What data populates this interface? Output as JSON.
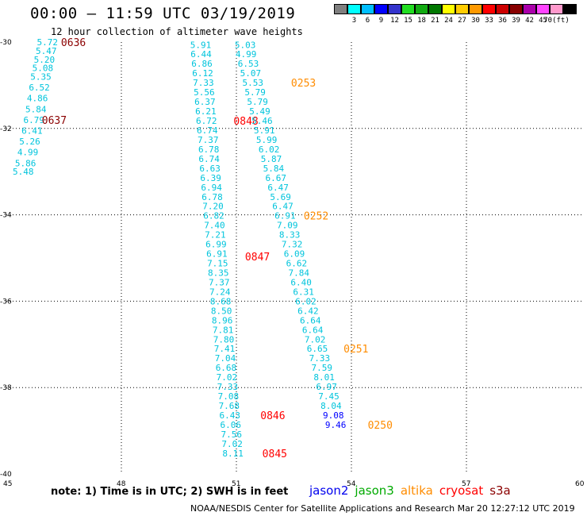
{
  "header": {
    "title": "00:00 – 11:59 UTC 03/19/2019",
    "subtitle": "12 hour collection of altimeter wave heights"
  },
  "scale": {
    "unit_label": "(ft)",
    "swatches": [
      {
        "color": "#7f7f7f",
        "label": ""
      },
      {
        "color": "#00ffff",
        "label": "3"
      },
      {
        "color": "#00bfff",
        "label": "6"
      },
      {
        "color": "#0000ff",
        "label": "9"
      },
      {
        "color": "#3333cc",
        "label": "12"
      },
      {
        "color": "#22dd22",
        "label": "15"
      },
      {
        "color": "#11aa11",
        "label": "18"
      },
      {
        "color": "#007700",
        "label": "21"
      },
      {
        "color": "#ffff00",
        "label": "24"
      },
      {
        "color": "#ffcc00",
        "label": "27"
      },
      {
        "color": "#ff9900",
        "label": "30"
      },
      {
        "color": "#ff0000",
        "label": "33"
      },
      {
        "color": "#cc0000",
        "label": "36"
      },
      {
        "color": "#880000",
        "label": "39"
      },
      {
        "color": "#aa00aa",
        "label": "42"
      },
      {
        "color": "#ff44ff",
        "label": "45"
      },
      {
        "color": "#ff99cc",
        "label": "70"
      },
      {
        "color": "#000000",
        "label": ""
      }
    ]
  },
  "axes": {
    "lon_ticks": [
      "45",
      "48",
      "51",
      "54",
      "57",
      "60"
    ],
    "lat_ticks": [
      "-30",
      "-32",
      "-34",
      "-36",
      "-38",
      "-40"
    ]
  },
  "tracks": [
    {
      "color": "#00c4dc",
      "label_color": "#8b0000",
      "points": [
        {
          "lon": 46.07,
          "lat": -30.0,
          "v": "5.72"
        },
        {
          "lon": 46.04,
          "lat": -30.2,
          "v": "5.47"
        },
        {
          "lon": 45.99,
          "lat": -30.4,
          "v": "5.20"
        },
        {
          "lon": 45.95,
          "lat": -30.6,
          "v": "5.08"
        },
        {
          "lon": 45.9,
          "lat": -30.8,
          "v": "5.35"
        },
        {
          "lon": 45.86,
          "lat": -31.05,
          "v": "6.52"
        },
        {
          "lon": 45.81,
          "lat": -31.3,
          "v": "4.86"
        },
        {
          "lon": 45.77,
          "lat": -31.55,
          "v": "5.84"
        },
        {
          "lon": 45.72,
          "lat": -31.8,
          "v": "6.79"
        },
        {
          "lon": 45.67,
          "lat": -32.05,
          "v": "6.41"
        },
        {
          "lon": 45.61,
          "lat": -32.3,
          "v": "5.26"
        },
        {
          "lon": 45.56,
          "lat": -32.55,
          "v": "4.99"
        },
        {
          "lon": 45.5,
          "lat": -32.8,
          "v": "5.86"
        },
        {
          "lon": 45.44,
          "lat": -33.0,
          "v": "5.48"
        }
      ],
      "labels": [
        {
          "lon": 46.75,
          "lat": -30.0,
          "t": "0636"
        },
        {
          "lon": 46.25,
          "lat": -31.8,
          "t": "0637"
        }
      ]
    },
    {
      "color": "#00c4dc",
      "label_color": "#ff0000",
      "points": [
        {
          "lon": 50.07,
          "lat": -30.06,
          "v": "5.91"
        },
        {
          "lon": 50.08,
          "lat": -30.28,
          "v": "6.44"
        },
        {
          "lon": 50.1,
          "lat": -30.5,
          "v": "6.86"
        },
        {
          "lon": 50.12,
          "lat": -30.72,
          "v": "6.12"
        },
        {
          "lon": 50.14,
          "lat": -30.94,
          "v": "7.33"
        },
        {
          "lon": 50.16,
          "lat": -31.16,
          "v": "5.56"
        },
        {
          "lon": 50.18,
          "lat": -31.38,
          "v": "6.37"
        },
        {
          "lon": 50.2,
          "lat": -31.6,
          "v": "6.21"
        },
        {
          "lon": 50.22,
          "lat": -31.82,
          "v": "6.72"
        },
        {
          "lon": 50.24,
          "lat": -32.04,
          "v": "6.74"
        },
        {
          "lon": 50.26,
          "lat": -32.26,
          "v": "7.37"
        },
        {
          "lon": 50.28,
          "lat": -32.48,
          "v": "6.78"
        },
        {
          "lon": 50.29,
          "lat": -32.7,
          "v": "6.74"
        },
        {
          "lon": 50.31,
          "lat": -32.92,
          "v": "6.63"
        },
        {
          "lon": 50.33,
          "lat": -33.14,
          "v": "6.39"
        },
        {
          "lon": 50.35,
          "lat": -33.36,
          "v": "6.94"
        },
        {
          "lon": 50.37,
          "lat": -33.58,
          "v": "6.78"
        },
        {
          "lon": 50.39,
          "lat": -33.8,
          "v": "7.20"
        },
        {
          "lon": 50.41,
          "lat": -34.02,
          "v": "6.82"
        },
        {
          "lon": 50.43,
          "lat": -34.24,
          "v": "7.40"
        },
        {
          "lon": 50.45,
          "lat": -34.46,
          "v": "7.21"
        },
        {
          "lon": 50.47,
          "lat": -34.68,
          "v": "6.99"
        },
        {
          "lon": 50.49,
          "lat": -34.9,
          "v": "6.91"
        },
        {
          "lon": 50.51,
          "lat": -35.12,
          "v": "7.15"
        },
        {
          "lon": 50.53,
          "lat": -35.34,
          "v": "8.35"
        },
        {
          "lon": 50.55,
          "lat": -35.56,
          "v": "7.37"
        },
        {
          "lon": 50.57,
          "lat": -35.78,
          "v": "7.24"
        },
        {
          "lon": 50.59,
          "lat": -36.0,
          "v": "8.68"
        },
        {
          "lon": 50.61,
          "lat": -36.22,
          "v": "8.50"
        },
        {
          "lon": 50.63,
          "lat": -36.44,
          "v": "8.96"
        },
        {
          "lon": 50.65,
          "lat": -36.66,
          "v": "7.81"
        },
        {
          "lon": 50.67,
          "lat": -36.88,
          "v": "7.80"
        },
        {
          "lon": 50.69,
          "lat": -37.1,
          "v": "7.41"
        },
        {
          "lon": 50.71,
          "lat": -37.32,
          "v": "7.04"
        },
        {
          "lon": 50.73,
          "lat": -37.54,
          "v": "6.68"
        },
        {
          "lon": 50.75,
          "lat": -37.76,
          "v": "7.02"
        },
        {
          "lon": 50.77,
          "lat": -37.98,
          "v": "7.33"
        },
        {
          "lon": 50.79,
          "lat": -38.2,
          "v": "7.08"
        },
        {
          "lon": 50.81,
          "lat": -38.42,
          "v": "7.68"
        },
        {
          "lon": 50.83,
          "lat": -38.64,
          "v": "6.43"
        },
        {
          "lon": 50.85,
          "lat": -38.86,
          "v": "6.06"
        },
        {
          "lon": 50.87,
          "lat": -39.08,
          "v": "7.56"
        },
        {
          "lon": 50.89,
          "lat": -39.3,
          "v": "7.02"
        },
        {
          "lon": 50.91,
          "lat": -39.52,
          "v": "8.11"
        }
      ],
      "labels": [
        {
          "lon": 51.25,
          "lat": -31.82,
          "t": "0848"
        },
        {
          "lon": 51.55,
          "lat": -34.96,
          "v2": "",
          "t": "0847"
        },
        {
          "lon": 51.95,
          "lat": -38.64,
          "t": "0846"
        },
        {
          "lon": 52.0,
          "lat": -39.52,
          "t": "0845"
        }
      ]
    },
    {
      "color": "#00c4dc",
      "label_color": "#ff8c00",
      "points": [
        {
          "lon": 51.23,
          "lat": -30.06,
          "v": "5.03"
        },
        {
          "lon": 51.25,
          "lat": -30.28,
          "v": "4.99"
        },
        {
          "lon": 51.31,
          "lat": -30.5,
          "v": "6.53"
        },
        {
          "lon": 51.37,
          "lat": -30.72,
          "v": "5.07"
        },
        {
          "lon": 51.43,
          "lat": -30.94,
          "v": "5.53"
        },
        {
          "lon": 51.49,
          "lat": -31.16,
          "v": "5.79"
        },
        {
          "lon": 51.55,
          "lat": -31.38,
          "v": "5.79"
        },
        {
          "lon": 51.61,
          "lat": -31.6,
          "v": "5.49"
        },
        {
          "lon": 51.67,
          "lat": -31.82,
          "v": "5.46"
        },
        {
          "lon": 51.73,
          "lat": -32.04,
          "v": "5.91"
        },
        {
          "lon": 51.79,
          "lat": -32.26,
          "v": "5.99"
        },
        {
          "lon": 51.85,
          "lat": -32.48,
          "v": "6.02"
        },
        {
          "lon": 51.91,
          "lat": -32.7,
          "v": "5.87"
        },
        {
          "lon": 51.97,
          "lat": -32.92,
          "v": "5.84"
        },
        {
          "lon": 52.03,
          "lat": -33.14,
          "v": "6.67"
        },
        {
          "lon": 52.09,
          "lat": -33.36,
          "v": "6.47"
        },
        {
          "lon": 52.15,
          "lat": -33.58,
          "v": "5.69"
        },
        {
          "lon": 52.21,
          "lat": -33.8,
          "v": "6.47"
        },
        {
          "lon": 52.27,
          "lat": -34.02,
          "v": "6.91"
        },
        {
          "lon": 52.33,
          "lat": -34.24,
          "v": "7.09"
        },
        {
          "lon": 52.39,
          "lat": -34.46,
          "v": "8.33"
        },
        {
          "lon": 52.45,
          "lat": -34.68,
          "v": "7.32"
        },
        {
          "lon": 52.51,
          "lat": -34.9,
          "v": "6.09"
        },
        {
          "lon": 52.57,
          "lat": -35.12,
          "v": "6.62"
        },
        {
          "lon": 52.63,
          "lat": -35.34,
          "v": "7.84"
        },
        {
          "lon": 52.69,
          "lat": -35.56,
          "v": "6.40"
        },
        {
          "lon": 52.75,
          "lat": -35.78,
          "v": "6.31"
        },
        {
          "lon": 52.81,
          "lat": -36.0,
          "v": "6.02"
        },
        {
          "lon": 52.87,
          "lat": -36.22,
          "v": "6.42"
        },
        {
          "lon": 52.93,
          "lat": -36.44,
          "v": "6.64"
        },
        {
          "lon": 52.99,
          "lat": -36.66,
          "v": "6.64"
        },
        {
          "lon": 53.05,
          "lat": -36.88,
          "v": "7.02"
        },
        {
          "lon": 53.11,
          "lat": -37.1,
          "v": "6.65"
        },
        {
          "lon": 53.17,
          "lat": -37.32,
          "v": "7.33"
        },
        {
          "lon": 53.23,
          "lat": -37.54,
          "v": "7.59"
        },
        {
          "lon": 53.29,
          "lat": -37.76,
          "v": "8.01"
        },
        {
          "lon": 53.35,
          "lat": -37.98,
          "v": "6.97"
        },
        {
          "lon": 53.41,
          "lat": -38.2,
          "v": "7.45"
        },
        {
          "lon": 53.47,
          "lat": -38.42,
          "v": "8.04"
        },
        {
          "lon": 53.53,
          "lat": -38.64,
          "v": "9.08",
          "c": "#0000ff"
        },
        {
          "lon": 53.59,
          "lat": -38.86,
          "v": "9.46",
          "c": "#0000ff"
        }
      ],
      "labels": [
        {
          "lon": 52.75,
          "lat": -30.94,
          "t": "0253"
        },
        {
          "lon": 53.08,
          "lat": -34.02,
          "t": "0252"
        },
        {
          "lon": 54.12,
          "lat": -37.1,
          "t": "0251"
        },
        {
          "lon": 54.75,
          "lat": -38.86,
          "t": "0250"
        }
      ]
    }
  ],
  "note": "note:  1) Time is in UTC; 2) SWH is in feet",
  "missions": [
    {
      "name": "jason2",
      "color": "#0000ee"
    },
    {
      "name": "jason3",
      "color": "#00aa00"
    },
    {
      "name": "altika",
      "color": "#ff8c00"
    },
    {
      "name": "cryosat",
      "color": "#ff0000"
    },
    {
      "name": "s3a",
      "color": "#8b0000"
    }
  ],
  "footer": "NOAA/NESDIS Center for Satellite Applications and Research    Mar 20 12:27:12 UTC 2019"
}
